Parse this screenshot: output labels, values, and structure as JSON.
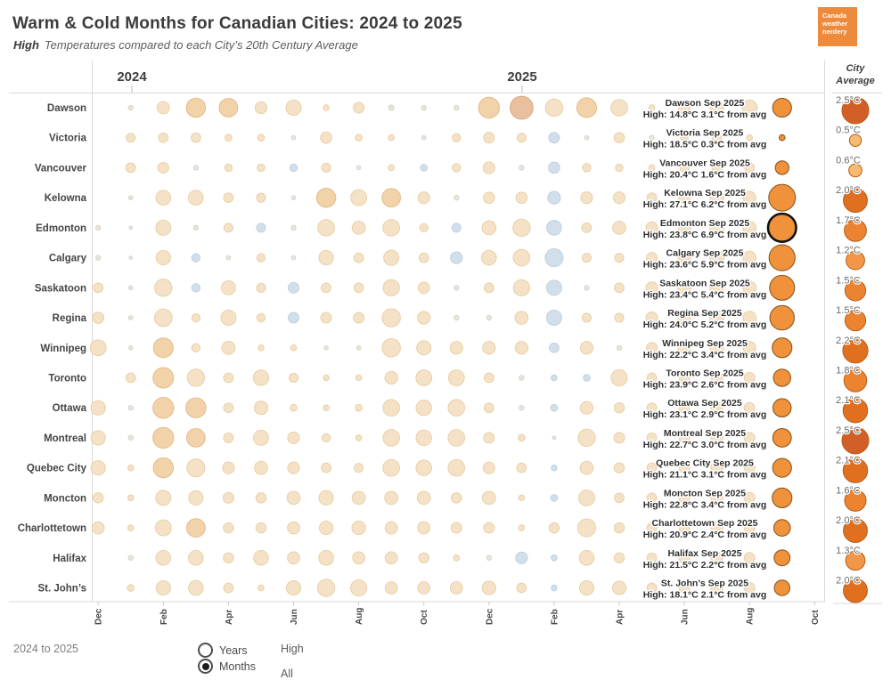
{
  "header": {
    "title": "Warm & Cold Months for Canadian Cities: 2024 to 2025",
    "subtitle_lead": "High",
    "subtitle_rest": "Temperatures compared to each City’s 20th Century Average"
  },
  "logo": {
    "lines": [
      "Canada",
      "weather",
      "nerdery"
    ],
    "color": "#ed8a3c"
  },
  "year_headers": [
    {
      "label": "2024"
    },
    {
      "label": "2025"
    }
  ],
  "right_panel": {
    "header_line1": "City",
    "header_line2": "Average"
  },
  "footer": {
    "range_label": "2024 to 2025",
    "radio_options": [
      {
        "label": "Years",
        "selected": false
      },
      {
        "label": "Months",
        "selected": true
      }
    ],
    "list_options": [
      {
        "label": "High"
      },
      {
        "label": "All"
      }
    ]
  },
  "colors": {
    "warm_small": "#f5e2c6",
    "warm_small_stroke": "#e8d0a9",
    "warm_big": "#f2d2a8",
    "warm_big_stroke": "#e4bd8a",
    "warm_huge": "#eabf9e",
    "warm_huge_stroke": "#dcaa82",
    "cold": "#d2dfeb",
    "cold_stroke": "#bed1e0",
    "neutral": "#e8e4de",
    "neutral_stroke": "#d9d3c9",
    "sep_highlight": "#f0913c",
    "sep_highlight_stroke": "#8c5a20",
    "selected_stroke": "#111111",
    "avg_scale": [
      "#f6ba72",
      "#f2964a",
      "#eb8330",
      "#e0701f",
      "#d15f27"
    ],
    "avg_stroke": "#b55e1c"
  },
  "chart_data": {
    "type": "scatter",
    "title": "Warm & Cold Months for Canadian Cities: 2024 to 2025",
    "subtitle": "High Temperatures compared to each City’s 20th Century Average",
    "unit": "°C anomaly vs 20th-century average",
    "x_axis": {
      "months": [
        "Dec 2023",
        "Jan 2024",
        "Feb 2024",
        "Mar 2024",
        "Apr 2024",
        "May 2024",
        "Jun 2024",
        "Jul 2024",
        "Aug 2024",
        "Sep 2024",
        "Oct 2024",
        "Nov 2024",
        "Dec 2024",
        "Jan 2025",
        "Feb 2025",
        "Mar 2025",
        "Apr 2025",
        "May 2025",
        "Jun 2025",
        "Jul 2025",
        "Aug 2025",
        "Sep 2025",
        "Oct 2025"
      ],
      "tick_labels": [
        "Dec",
        "Feb",
        "Apr",
        "Jun",
        "Aug",
        "Oct",
        "Dec",
        "Feb",
        "Apr",
        "Jun",
        "Aug",
        "Oct"
      ]
    },
    "selected_city": "Edmonton",
    "cities": [
      {
        "name": "Dawson",
        "sep_label": "Dawson Sep 2025",
        "sep_detail": "High: 14.8°C 3.1°C from avg",
        "sep_high": 14.8,
        "sep_anom": 3.1,
        "avg": 2.5,
        "avg_label": "2.5°C",
        "monthly": [
          0,
          0.2,
          1.3,
          3.2,
          3.0,
          1.2,
          2.0,
          0.3,
          1.0,
          0.25,
          0.2,
          0.2,
          3.8,
          4.6,
          2.6,
          3.4,
          2.4,
          0.3,
          1.2,
          1.6,
          2.0,
          3.1
        ]
      },
      {
        "name": "Victoria",
        "sep_label": "Victoria Sep 2025",
        "sep_detail": "High: 18.5°C 0.3°C from avg",
        "sep_high": 18.5,
        "sep_anom": 0.3,
        "avg": 0.5,
        "avg_label": "0.5°C",
        "monthly": [
          0,
          0.7,
          0.8,
          0.8,
          0.4,
          0.4,
          0.15,
          1.1,
          0.4,
          0.3,
          0.15,
          0.6,
          1.0,
          0.7,
          -1.0,
          0.15,
          0.9,
          0.2,
          0.5,
          0.7,
          0.3,
          0.3
        ]
      },
      {
        "name": "Vancouver",
        "sep_label": "Vancouver Sep 2025",
        "sep_detail": "High: 20.4°C 1.6°C from avg",
        "sep_high": 20.4,
        "sep_anom": 1.6,
        "avg": 0.6,
        "avg_label": "0.6°C",
        "monthly": [
          0,
          0.8,
          1.0,
          0.2,
          0.5,
          0.5,
          -0.5,
          0.7,
          0.15,
          0.3,
          -0.4,
          0.6,
          1.2,
          0.2,
          -1.1,
          0.6,
          0.5,
          0.3,
          0.7,
          0.9,
          0.8,
          1.6
        ]
      },
      {
        "name": "Kelowna",
        "sep_label": "Kelowna Sep 2025",
        "sep_detail": "High: 27.1°C 6.2°C from avg",
        "sep_high": 27.1,
        "sep_anom": 6.2,
        "avg": 2.0,
        "avg_label": "2.0°C",
        "monthly": [
          0,
          0.15,
          1.9,
          1.9,
          0.8,
          0.7,
          0.15,
          3.2,
          2.2,
          3.0,
          1.2,
          0.2,
          1.1,
          1.1,
          -1.4,
          1.2,
          1.2,
          0.8,
          1.2,
          1.8,
          1.4,
          6.2
        ]
      },
      {
        "name": "Edmonton",
        "sep_label": "Edmonton Sep 2025",
        "sep_detail": "High: 23.8°C 6.9°C from avg",
        "sep_high": 23.8,
        "sep_anom": 6.9,
        "avg": 1.7,
        "avg_label": "1.7°C",
        "monthly": [
          0.2,
          0.1,
          2.0,
          0.2,
          0.7,
          -0.7,
          0.2,
          2.4,
          1.5,
          2.4,
          0.6,
          -0.7,
          1.7,
          2.6,
          -1.9,
          0.8,
          1.5,
          1.2,
          1.4,
          1.8,
          1.5,
          6.9
        ]
      },
      {
        "name": "Calgary",
        "sep_label": "Calgary Sep 2025",
        "sep_detail": "High: 23.6°C 5.9°C from avg",
        "sep_high": 23.6,
        "sep_anom": 5.9,
        "avg": 1.2,
        "avg_label": "1.2°C",
        "monthly": [
          0.2,
          0.1,
          1.8,
          -0.6,
          0.15,
          0.6,
          0.15,
          1.8,
          0.8,
          2.0,
          0.8,
          -1.2,
          1.9,
          2.4,
          -2.8,
          0.7,
          0.7,
          1.0,
          1.4,
          1.8,
          1.5,
          5.9
        ]
      },
      {
        "name": "Saskatoon",
        "sep_label": "Saskatoon Sep 2025",
        "sep_detail": "High: 23.4°C 5.4°C from avg",
        "sep_high": 23.4,
        "sep_anom": 5.4,
        "avg": 1.5,
        "avg_label": "1.5°C",
        "monthly": [
          0.8,
          0.15,
          2.6,
          -0.6,
          1.7,
          0.7,
          -1.0,
          0.8,
          0.8,
          2.3,
          1.1,
          0.2,
          0.8,
          2.3,
          -2.0,
          0.2,
          0.8,
          1.2,
          1.5,
          1.8,
          1.5,
          5.4
        ]
      },
      {
        "name": "Regina",
        "sep_label": "Regina Sep 2025",
        "sep_detail": "High: 24.0°C 5.2°C from avg",
        "sep_high": 24.0,
        "sep_anom": 5.2,
        "avg": 1.5,
        "avg_label": "1.5°C",
        "monthly": [
          1.1,
          0.15,
          2.7,
          0.6,
          2.0,
          0.6,
          -1.0,
          1.0,
          1.0,
          2.9,
          1.4,
          0.2,
          0.2,
          1.5,
          -2.0,
          0.7,
          0.7,
          1.2,
          1.5,
          1.8,
          1.5,
          5.2
        ]
      },
      {
        "name": "Winnipeg",
        "sep_label": "Winnipeg Sep 2025",
        "sep_detail": "High: 22.2°C 3.4°C from avg",
        "sep_high": 22.2,
        "sep_anom": 3.4,
        "avg": 2.2,
        "avg_label": "2.2°C",
        "monthly": [
          2.2,
          0.15,
          3.4,
          0.6,
          1.5,
          0.3,
          0.3,
          0.15,
          0.15,
          2.9,
          1.8,
          1.4,
          1.4,
          1.4,
          -0.8,
          1.4,
          0.2,
          1.0,
          1.4,
          1.6,
          1.4,
          3.4
        ]
      },
      {
        "name": "Toronto",
        "sep_label": "Toronto Sep 2025",
        "sep_detail": "High: 23.9°C 2.6°C from avg",
        "sep_high": 23.9,
        "sep_anom": 2.6,
        "avg": 1.8,
        "avg_label": "1.8°C",
        "monthly": [
          0,
          0.8,
          3.7,
          2.6,
          0.8,
          2.1,
          0.7,
          0.3,
          0.3,
          1.4,
          2.2,
          2.2,
          0.8,
          0.2,
          -0.3,
          -0.4,
          2.3,
          0.8,
          1.0,
          1.3,
          1.0,
          2.6
        ]
      },
      {
        "name": "Ottawa",
        "sep_label": "Ottawa Sep 2025",
        "sep_detail": "High: 23.1°C 2.9°C from avg",
        "sep_high": 23.1,
        "sep_anom": 2.9,
        "avg": 2.1,
        "avg_label": "2.1°C",
        "monthly": [
          1.8,
          0.2,
          3.8,
          3.5,
          0.8,
          1.6,
          0.4,
          0.3,
          0.4,
          2.4,
          2.1,
          2.4,
          0.8,
          0.2,
          -0.4,
          1.4,
          0.9,
          0.8,
          1.0,
          1.3,
          1.0,
          2.9
        ]
      },
      {
        "name": "Montreal",
        "sep_label": "Montreal Sep 2025",
        "sep_detail": "High: 22.7°C 3.0°C from avg",
        "sep_high": 22.7,
        "sep_anom": 3.0,
        "avg": 2.5,
        "avg_label": "2.5°C",
        "monthly": [
          1.8,
          0.2,
          3.8,
          3.0,
          0.8,
          2.0,
          1.2,
          0.6,
          0.3,
          2.4,
          2.1,
          2.4,
          1.0,
          0.4,
          0.1,
          2.6,
          1.0,
          0.8,
          1.0,
          1.3,
          1.0,
          3.0
        ]
      },
      {
        "name": "Quebec City",
        "sep_label": "Quebec City Sep 2025",
        "sep_detail": "High: 21.1°C 3.1°C from avg",
        "sep_high": 21.1,
        "sep_anom": 3.1,
        "avg": 2.1,
        "avg_label": "2.1°C",
        "monthly": [
          1.8,
          0.3,
          3.5,
          2.8,
          1.2,
          1.5,
          1.2,
          0.8,
          0.7,
          2.4,
          2.1,
          2.4,
          1.2,
          0.8,
          -0.3,
          1.5,
          0.9,
          0.8,
          1.0,
          1.3,
          1.0,
          3.1
        ]
      },
      {
        "name": "Moncton",
        "sep_label": "Moncton Sep 2025",
        "sep_detail": "High: 22.8°C 3.4°C from avg",
        "sep_high": 22.8,
        "sep_anom": 3.4,
        "avg": 1.6,
        "avg_label": "1.6°C",
        "monthly": [
          0.9,
          0.3,
          2.0,
          1.8,
          1.0,
          0.9,
          1.5,
          1.8,
          1.5,
          1.5,
          1.5,
          0.9,
          1.5,
          0.3,
          -0.4,
          2.2,
          0.8,
          0.8,
          1.0,
          1.3,
          1.0,
          3.4
        ]
      },
      {
        "name": "Charlottetown",
        "sep_label": "Charlottetown Sep 2025",
        "sep_detail": "High: 20.9°C 2.4°C from avg",
        "sep_high": 20.9,
        "sep_anom": 2.4,
        "avg": 2.0,
        "avg_label": "2.0°C",
        "monthly": [
          1.3,
          0.3,
          2.2,
          3.0,
          0.9,
          0.9,
          1.3,
          1.6,
          1.6,
          1.3,
          1.3,
          1.0,
          1.0,
          0.3,
          0.9,
          2.8,
          0.9,
          0.8,
          1.0,
          1.3,
          1.0,
          2.4
        ]
      },
      {
        "name": "Halifax",
        "sep_label": "Halifax Sep 2025",
        "sep_detail": "High: 21.5°C 2.2°C from avg",
        "sep_high": 21.5,
        "sep_anom": 2.2,
        "avg": 1.3,
        "avg_label": "1.3°C",
        "monthly": [
          0,
          0.2,
          1.9,
          1.9,
          0.9,
          1.9,
          1.3,
          1.9,
          1.3,
          1.3,
          0.9,
          0.3,
          0.2,
          -1.2,
          -0.3,
          1.9,
          0.9,
          0.8,
          1.0,
          1.3,
          1.0,
          2.2
        ]
      },
      {
        "name": "St. John’s",
        "sep_label": "St. John’s Sep 2025",
        "sep_detail": "High: 18.1°C 2.1°C from avg",
        "sep_high": 18.1,
        "sep_anom": 2.1,
        "avg": 2.0,
        "avg_label": "2.0°C",
        "monthly": [
          0,
          0.4,
          1.8,
          1.9,
          0.8,
          0.3,
          1.8,
          2.6,
          2.3,
          1.3,
          1.3,
          1.3,
          1.6,
          0.8,
          -0.3,
          1.8,
          1.6,
          0.8,
          1.0,
          1.3,
          1.0,
          2.1
        ]
      }
    ]
  }
}
